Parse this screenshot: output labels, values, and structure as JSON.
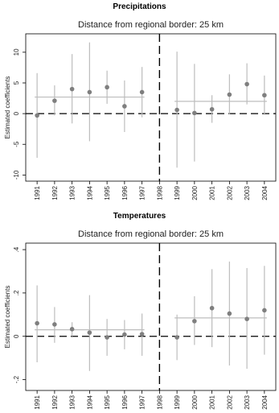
{
  "chart_data": [
    {
      "type": "scatter",
      "heading": "Precipitations",
      "title": "Distance from regional border: 25 km",
      "xlabel": "",
      "ylabel": "Estimated coefficients",
      "ylim": [
        -11,
        13
      ],
      "yticks": [
        -10,
        -5,
        0,
        5,
        10
      ],
      "ytick_labels": [
        "-10",
        "-5",
        "0",
        "5",
        "10"
      ],
      "x": [
        "1991",
        "1992",
        "1993",
        "1994",
        "1995",
        "1996",
        "1997",
        "1998",
        "1999",
        "2000",
        "2001",
        "2002",
        "2003",
        "2004"
      ],
      "grid": false,
      "legend": "none",
      "colors": {
        "point": "#7f7f7f",
        "ci": "#bdbdbd",
        "mean": "#bdbdbd",
        "zero": "#000000"
      },
      "break_year": "1998",
      "series": [
        {
          "points": [
            {
              "x": "1991",
              "y": -0.3,
              "lo": -7.2,
              "hi": 6.6
            },
            {
              "x": "1992",
              "y": 2.1,
              "lo": -0.3,
              "hi": 4.6
            },
            {
              "x": "1993",
              "y": 4.0,
              "lo": -1.6,
              "hi": 9.7
            },
            {
              "x": "1994",
              "y": 3.5,
              "lo": -4.5,
              "hi": 11.6
            },
            {
              "x": "1995",
              "y": 4.3,
              "lo": 1.6,
              "hi": 7.0
            },
            {
              "x": "1996",
              "y": 1.2,
              "lo": -3.0,
              "hi": 5.4
            },
            {
              "x": "1997",
              "y": 3.5,
              "lo": -0.6,
              "hi": 7.6
            },
            {
              "x": "1999",
              "y": 0.6,
              "lo": -8.8,
              "hi": 10.1
            },
            {
              "x": "2000",
              "y": 0.1,
              "lo": -7.8,
              "hi": 8.1
            },
            {
              "x": "2001",
              "y": 0.7,
              "lo": -1.5,
              "hi": 3.0
            },
            {
              "x": "2002",
              "y": 3.1,
              "lo": -0.1,
              "hi": 6.4
            },
            {
              "x": "2003",
              "y": 4.8,
              "lo": 1.5,
              "hi": 8.2
            },
            {
              "x": "2004",
              "y": 3.0,
              "lo": -0.2,
              "hi": 6.2
            }
          ]
        }
      ],
      "mean_lines": [
        {
          "from": "1991",
          "to": "1997",
          "y": 2.7
        },
        {
          "from": "1999",
          "to": "2004",
          "y": 2.0
        }
      ]
    },
    {
      "type": "scatter",
      "heading": "Temperatures",
      "title": "Distance from regional border: 25 km",
      "xlabel": "",
      "ylabel": "Estimated coefficients",
      "ylim": [
        -0.25,
        0.43
      ],
      "yticks": [
        -0.2,
        0,
        0.2,
        0.4
      ],
      "ytick_labels": [
        "-.2",
        "0",
        ".2",
        ".4"
      ],
      "x": [
        "1991",
        "1992",
        "1993",
        "1994",
        "1995",
        "1996",
        "1997",
        "1998",
        "1999",
        "2000",
        "2001",
        "2002",
        "2003",
        "2004"
      ],
      "grid": false,
      "legend": "none",
      "colors": {
        "point": "#7f7f7f",
        "ci": "#bdbdbd",
        "mean": "#bdbdbd",
        "zero": "#000000"
      },
      "break_year": "1998",
      "series": [
        {
          "points": [
            {
              "x": "1991",
              "y": 0.06,
              "lo": -0.12,
              "hi": 0.235
            },
            {
              "x": "1992",
              "y": 0.055,
              "lo": -0.03,
              "hi": 0.135
            },
            {
              "x": "1993",
              "y": 0.033,
              "lo": 0.0,
              "hi": 0.065
            },
            {
              "x": "1994",
              "y": 0.017,
              "lo": -0.16,
              "hi": 0.19
            },
            {
              "x": "1995",
              "y": -0.005,
              "lo": -0.09,
              "hi": 0.08
            },
            {
              "x": "1996",
              "y": 0.008,
              "lo": -0.06,
              "hi": 0.075
            },
            {
              "x": "1997",
              "y": 0.01,
              "lo": -0.09,
              "hi": 0.105
            },
            {
              "x": "1999",
              "y": -0.005,
              "lo": -0.11,
              "hi": 0.1
            },
            {
              "x": "2000",
              "y": 0.07,
              "lo": -0.04,
              "hi": 0.185
            },
            {
              "x": "2001",
              "y": 0.13,
              "lo": -0.05,
              "hi": 0.31
            },
            {
              "x": "2002",
              "y": 0.105,
              "lo": -0.135,
              "hi": 0.345
            },
            {
              "x": "2003",
              "y": 0.08,
              "lo": -0.15,
              "hi": 0.315
            },
            {
              "x": "2004",
              "y": 0.12,
              "lo": -0.085,
              "hi": 0.325
            }
          ]
        }
      ],
      "mean_lines": [
        {
          "from": "1991",
          "to": "1997",
          "y": 0.03
        },
        {
          "from": "1999",
          "to": "2004",
          "y": 0.085
        }
      ]
    }
  ]
}
